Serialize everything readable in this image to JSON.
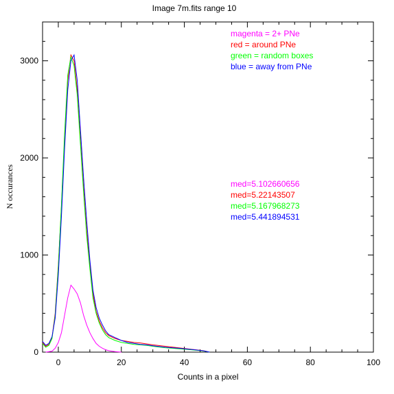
{
  "chart_data": {
    "type": "line",
    "title": "Image 7m.fits   range 10",
    "xlabel": "Counts in a pixel",
    "ylabel": "N  occurances",
    "xlim": [
      -5,
      100
    ],
    "ylim": [
      0,
      3400
    ],
    "xticks": [
      0,
      20,
      40,
      60,
      80,
      100
    ],
    "yticks": [
      0,
      1000,
      2000,
      3000
    ],
    "grid": false,
    "legend_position": "top-right",
    "legend": [
      {
        "text": "magenta = 2+ PNe",
        "color": "#ff00ff"
      },
      {
        "text": "red = around PNe",
        "color": "#ff0000"
      },
      {
        "text": "green = random boxes",
        "color": "#00ff00"
      },
      {
        "text": "blue = away from PNe",
        "color": "#0000ff"
      }
    ],
    "annotations": [
      {
        "text": "med=5.102660656",
        "color": "#ff00ff"
      },
      {
        "text": "med=5.22143507",
        "color": "#ff0000"
      },
      {
        "text": "med=5.167968273",
        "color": "#00ff00"
      },
      {
        "text": "med=5.441894531",
        "color": "#0000ff"
      }
    ],
    "series": [
      {
        "color": "#ff00ff",
        "x": [
          -4,
          -2,
          -1,
          0,
          1,
          2,
          3,
          4,
          5,
          6,
          7,
          8,
          9,
          10,
          11,
          12,
          13,
          14,
          15,
          16,
          17,
          18,
          20
        ],
        "y": [
          0,
          10,
          40,
          100,
          200,
          380,
          560,
          690,
          650,
          600,
          510,
          380,
          280,
          200,
          140,
          90,
          60,
          40,
          25,
          15,
          10,
          5,
          0
        ]
      },
      {
        "color": "#ff0000",
        "x": [
          -5,
          -4,
          -3,
          -2,
          -1,
          0,
          1,
          2,
          3,
          4,
          5,
          6,
          7,
          8,
          9,
          10,
          11,
          12,
          13,
          14,
          15,
          16,
          18,
          20,
          22,
          24,
          26,
          28,
          30,
          34,
          38,
          42,
          46,
          48
        ],
        "y": [
          100,
          60,
          80,
          150,
          400,
          900,
          1500,
          2200,
          2800,
          3060,
          3000,
          2700,
          2200,
          1700,
          1250,
          900,
          600,
          420,
          320,
          250,
          200,
          170,
          140,
          120,
          110,
          100,
          95,
          85,
          75,
          60,
          45,
          30,
          15,
          0
        ]
      },
      {
        "color": "#00ff00",
        "x": [
          -5,
          -4,
          -3,
          -2,
          -1,
          0,
          1,
          2,
          3,
          4,
          5,
          6,
          7,
          8,
          9,
          10,
          11,
          12,
          13,
          14,
          15,
          16,
          18,
          20,
          22,
          24,
          26,
          28,
          30,
          34,
          38,
          42,
          46,
          48
        ],
        "y": [
          90,
          50,
          70,
          140,
          380,
          880,
          1520,
          2250,
          2850,
          3040,
          2950,
          2650,
          2150,
          1650,
          1200,
          860,
          560,
          400,
          300,
          230,
          180,
          150,
          120,
          100,
          90,
          80,
          75,
          70,
          60,
          45,
          35,
          25,
          12,
          0
        ]
      },
      {
        "color": "#0000ff",
        "x": [
          -5,
          -4,
          -3,
          -2,
          -1,
          0,
          1,
          2,
          3,
          4,
          5,
          6,
          7,
          8,
          9,
          10,
          11,
          12,
          13,
          14,
          15,
          16,
          18,
          20,
          22,
          24,
          26,
          28,
          30,
          34,
          38,
          42,
          46,
          48
        ],
        "y": [
          110,
          70,
          90,
          160,
          350,
          800,
          1400,
          2100,
          2700,
          3000,
          3060,
          2800,
          2300,
          1800,
          1350,
          950,
          640,
          460,
          350,
          280,
          220,
          180,
          150,
          120,
          100,
          90,
          80,
          75,
          65,
          50,
          40,
          28,
          14,
          0
        ]
      }
    ]
  }
}
